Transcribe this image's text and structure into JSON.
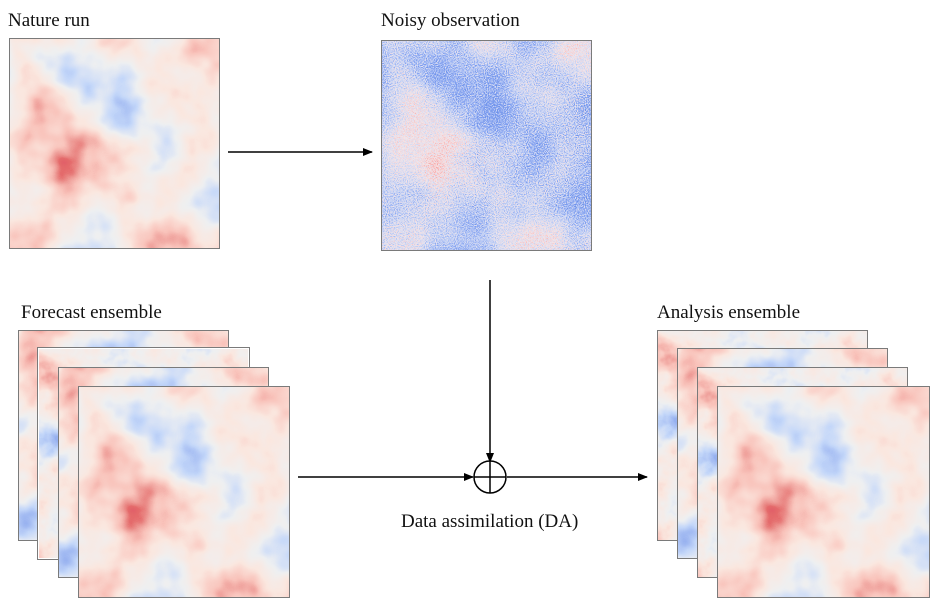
{
  "labels": {
    "nature_run": "Nature run",
    "noisy_observation": "Noisy observation",
    "forecast_ensemble": "Forecast ensemble",
    "analysis_ensemble": "Analysis ensemble",
    "data_assimilation": "Data assimilation (DA)"
  },
  "colors": {
    "red": "#c0101f",
    "blue": "#2f4fc0",
    "neutral": "#dcdcdc",
    "arrow": "#000000"
  }
}
